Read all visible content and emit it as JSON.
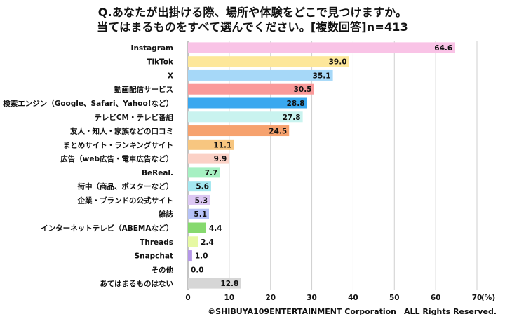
{
  "title_line1": "Q.あなたが出掛ける際、場所や体験をどこで見つけますか。",
  "title_line2": "当てはまるものをすべて選んでください。[複数回答]n=413",
  "copyright": "©SHIBUYA109ENTERTAINMENT Corporation　ALL Rights Reserved.",
  "chart_data": {
    "type": "bar",
    "orientation": "horizontal",
    "xlim": [
      0,
      70
    ],
    "xticks": [
      0,
      10,
      20,
      30,
      40,
      50,
      60,
      70
    ],
    "unit_label": "(%)",
    "grid": true,
    "categories": [
      "Instagram",
      "TikTok",
      "X",
      "動画配信サービス",
      "検索エンジン（Google、Safari、Yahoo!など）",
      "テレビCM・テレビ番組",
      "友人・知人・家族などの口コミ",
      "まとめサイト・ランキングサイト",
      "広告（web広告・電車広告など）",
      "BeReal.",
      "街中（商品、ポスターなど）",
      "企業・ブランドの公式サイト",
      "雑誌",
      "インターネットテレビ（ABEMAなど）",
      "Threads",
      "Snapchat",
      "その他",
      "あてはまるものはない"
    ],
    "values": [
      64.6,
      39.0,
      35.1,
      30.5,
      28.8,
      27.8,
      24.5,
      11.1,
      9.9,
      7.7,
      5.6,
      5.3,
      5.1,
      4.4,
      2.4,
      1.0,
      0.0,
      12.8
    ],
    "value_labels": [
      "64.6",
      "39.0",
      "35.1",
      "30.5",
      "28.8",
      "27.8",
      "24.5",
      "11.1",
      "9.9",
      "7.7",
      "5.6",
      "5.3",
      "5.1",
      "4.4",
      "2.4",
      "1.0",
      "0.0",
      "12.8"
    ],
    "colors": [
      "#f9c3e6",
      "#fde79a",
      "#a6d8f8",
      "#fa9a9a",
      "#3aa8ef",
      "#c9f3ef",
      "#f6a26e",
      "#f7c680",
      "#fbd1c6",
      "#a6f0c2",
      "#a4e7f0",
      "#dcc7f3",
      "#b6c2f6",
      "#86d96e",
      "#e6f9a3",
      "#b597e8",
      "#ffffff",
      "#d6d6d6"
    ]
  }
}
